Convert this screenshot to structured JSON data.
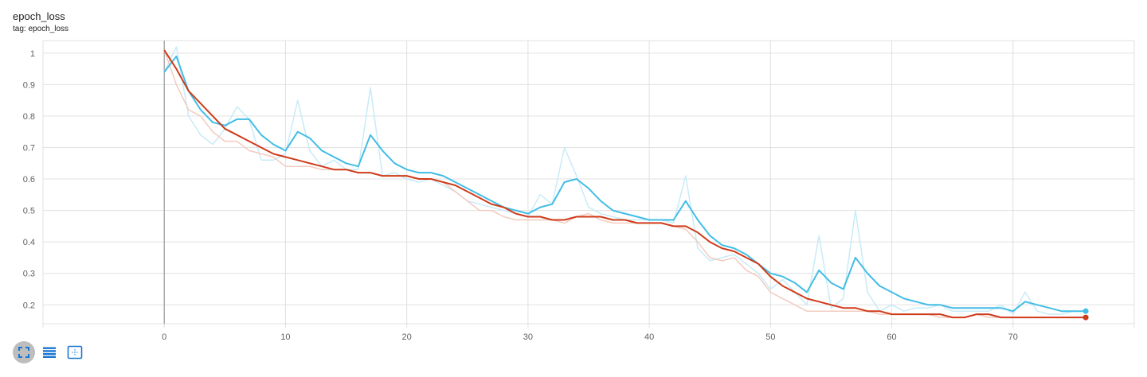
{
  "card": {
    "title": "epoch_loss",
    "subtitle": "tag: epoch_loss"
  },
  "toolbar": {
    "icons": [
      "fit-domain-icon",
      "data-table-icon",
      "select-region-icon"
    ]
  },
  "colors": {
    "blue": "#42bde6",
    "blue_faint": "#c8ebf7",
    "orange": "#cf3b1a",
    "orange_faint": "#f2cbbf",
    "grid": "#e0e0e0",
    "zero_axis": "#9e9e9e"
  },
  "chart_data": {
    "type": "line",
    "title": "epoch_loss",
    "xlabel": "",
    "ylabel": "",
    "xlim": [
      -10,
      80
    ],
    "ylim": [
      0.14,
      1.04
    ],
    "x_ticks": [
      0,
      10,
      20,
      30,
      40,
      50,
      60,
      70
    ],
    "y_ticks": [
      0.2,
      0.3,
      0.4,
      0.5,
      0.6,
      0.7,
      0.8,
      0.9,
      1
    ],
    "grid": true,
    "series": [
      {
        "color": "blue",
        "raw": [
          0.94,
          1.02,
          0.8,
          0.74,
          0.71,
          0.76,
          0.83,
          0.79,
          0.66,
          0.66,
          0.68,
          0.85,
          0.69,
          0.64,
          0.66,
          0.63,
          0.63,
          0.89,
          0.61,
          0.62,
          0.6,
          0.59,
          0.6,
          0.58,
          0.56,
          0.53,
          0.52,
          0.51,
          0.5,
          0.49,
          0.48,
          0.55,
          0.52,
          0.7,
          0.61,
          0.51,
          0.49,
          0.48,
          0.47,
          0.47,
          0.47,
          0.47,
          0.46,
          0.61,
          0.38,
          0.34,
          0.35,
          0.36,
          0.33,
          0.3,
          0.25,
          0.28,
          0.24,
          0.2,
          0.42,
          0.19,
          0.22,
          0.5,
          0.24,
          0.18,
          0.2,
          0.18,
          0.19,
          0.19,
          0.2,
          0.18,
          0.18,
          0.18,
          0.18,
          0.2,
          0.17,
          0.24,
          0.18,
          0.17,
          0.17,
          0.18,
          0.18
        ],
        "smoothed": [
          0.94,
          0.99,
          0.88,
          0.82,
          0.78,
          0.77,
          0.79,
          0.79,
          0.74,
          0.71,
          0.69,
          0.75,
          0.73,
          0.69,
          0.67,
          0.65,
          0.64,
          0.74,
          0.69,
          0.65,
          0.63,
          0.62,
          0.62,
          0.61,
          0.59,
          0.57,
          0.55,
          0.53,
          0.51,
          0.5,
          0.49,
          0.51,
          0.52,
          0.59,
          0.6,
          0.57,
          0.53,
          0.5,
          0.49,
          0.48,
          0.47,
          0.47,
          0.47,
          0.53,
          0.47,
          0.42,
          0.39,
          0.38,
          0.36,
          0.33,
          0.3,
          0.29,
          0.27,
          0.24,
          0.31,
          0.27,
          0.25,
          0.35,
          0.3,
          0.26,
          0.24,
          0.22,
          0.21,
          0.2,
          0.2,
          0.19,
          0.19,
          0.19,
          0.19,
          0.19,
          0.18,
          0.21,
          0.2,
          0.19,
          0.18,
          0.18,
          0.18
        ]
      },
      {
        "color": "orange",
        "raw": [
          1.01,
          0.9,
          0.82,
          0.8,
          0.75,
          0.72,
          0.72,
          0.69,
          0.68,
          0.67,
          0.64,
          0.64,
          0.64,
          0.63,
          0.63,
          0.63,
          0.62,
          0.62,
          0.61,
          0.61,
          0.61,
          0.6,
          0.6,
          0.59,
          0.56,
          0.53,
          0.5,
          0.5,
          0.48,
          0.47,
          0.47,
          0.47,
          0.47,
          0.46,
          0.48,
          0.49,
          0.47,
          0.46,
          0.46,
          0.46,
          0.46,
          0.46,
          0.45,
          0.44,
          0.4,
          0.35,
          0.34,
          0.35,
          0.31,
          0.29,
          0.24,
          0.22,
          0.2,
          0.18,
          0.18,
          0.18,
          0.18,
          0.18,
          0.18,
          0.17,
          0.17,
          0.17,
          0.17,
          0.17,
          0.16,
          0.16,
          0.16,
          0.17,
          0.16,
          0.16,
          0.16,
          0.16,
          0.16,
          0.16,
          0.16,
          0.16,
          0.16
        ],
        "smoothed": [
          1.01,
          0.95,
          0.88,
          0.84,
          0.8,
          0.76,
          0.74,
          0.72,
          0.7,
          0.68,
          0.67,
          0.66,
          0.65,
          0.64,
          0.63,
          0.63,
          0.62,
          0.62,
          0.61,
          0.61,
          0.61,
          0.6,
          0.6,
          0.59,
          0.58,
          0.56,
          0.54,
          0.52,
          0.51,
          0.49,
          0.48,
          0.48,
          0.47,
          0.47,
          0.48,
          0.48,
          0.48,
          0.47,
          0.47,
          0.46,
          0.46,
          0.46,
          0.45,
          0.45,
          0.43,
          0.4,
          0.38,
          0.37,
          0.35,
          0.33,
          0.29,
          0.26,
          0.24,
          0.22,
          0.21,
          0.2,
          0.19,
          0.19,
          0.18,
          0.18,
          0.17,
          0.17,
          0.17,
          0.17,
          0.17,
          0.16,
          0.16,
          0.17,
          0.17,
          0.16,
          0.16,
          0.16,
          0.16,
          0.16,
          0.16,
          0.16,
          0.16
        ]
      }
    ]
  }
}
